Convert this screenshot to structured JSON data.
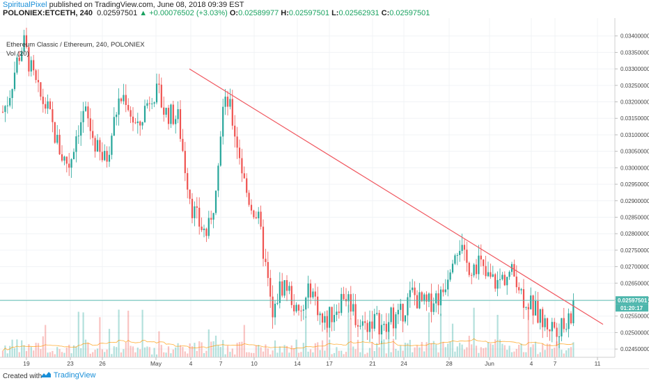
{
  "header": {
    "author": "SpiritualPixel",
    "published_text": " published on TradingView.com, June 08, 2018 09:39 EST",
    "symbol": "POLONIEX:ETCETH, 240",
    "last": "0.02597501",
    "change": "▲ +0.00076502 (+3.03%)",
    "o_label": "O:",
    "o_val": "0.02589977",
    "h_label": "H:",
    "h_val": "0.02597501",
    "l_label": "L:",
    "l_val": "0.02562931",
    "c_label": "C:",
    "c_val": "0.02597501"
  },
  "legend": {
    "title": "Ethereum Classic / Ethereum, 240, POLONIEX",
    "volume": "Vol (20)"
  },
  "footer": {
    "created_with": "Created with",
    "brand": "TradingView"
  },
  "colors": {
    "up": "#26a69a",
    "down": "#ef5350",
    "trendline": "#f0575f",
    "price_tag": "#4db6ac"
  },
  "chart_data": {
    "type": "candlestick",
    "title": "Ethereum Classic / Ethereum, 240, POLONIEX",
    "ylim": [
      0.02425,
      0.0345
    ],
    "y_ticks": [
      "0.02450000",
      "0.02500000",
      "0.02550000",
      "0.02600000",
      "0.02650000",
      "0.02700000",
      "0.02750000",
      "0.02800000",
      "0.02850000",
      "0.02900000",
      "0.02950000",
      "0.03000000",
      "0.03050000",
      "0.03100000",
      "0.03150000",
      "0.03200000",
      "0.03250000",
      "0.03300000",
      "0.03350000",
      "0.03400000"
    ],
    "x_ticks": [
      "19",
      "23",
      "26",
      "May",
      "4",
      "7",
      "10",
      "14",
      "17",
      "21",
      "24",
      "28",
      "Jun",
      "4",
      "7",
      "11"
    ],
    "price_line": 0.025975,
    "price_label": "0.02597501",
    "countdown_label": "01:20:17",
    "trendline": [
      {
        "date": "May 4",
        "price": 0.033
      },
      {
        "date": "Jun 9",
        "price": 0.02525
      }
    ],
    "path_points": [
      [
        0,
        0.0315
      ],
      [
        12,
        0.0321
      ],
      [
        24,
        0.0332
      ],
      [
        34,
        0.0338
      ],
      [
        44,
        0.033
      ],
      [
        56,
        0.0322
      ],
      [
        68,
        0.0318
      ],
      [
        80,
        0.0309
      ],
      [
        90,
        0.0303
      ],
      [
        100,
        0.0301
      ],
      [
        110,
        0.0311
      ],
      [
        122,
        0.0317
      ],
      [
        132,
        0.031
      ],
      [
        142,
        0.0304
      ],
      [
        152,
        0.0302
      ],
      [
        160,
        0.031
      ],
      [
        170,
        0.032
      ],
      [
        180,
        0.0322
      ],
      [
        190,
        0.0315
      ],
      [
        198,
        0.0311
      ],
      [
        208,
        0.0318
      ],
      [
        218,
        0.0323
      ],
      [
        228,
        0.0322
      ],
      [
        236,
        0.0317
      ],
      [
        246,
        0.0316
      ],
      [
        256,
        0.0315
      ],
      [
        266,
        0.03
      ],
      [
        276,
        0.0288
      ],
      [
        286,
        0.0283
      ],
      [
        296,
        0.028
      ],
      [
        304,
        0.0283
      ],
      [
        312,
        0.0301
      ],
      [
        320,
        0.0318
      ],
      [
        328,
        0.032
      ],
      [
        336,
        0.0312
      ],
      [
        344,
        0.0304
      ],
      [
        352,
        0.0294
      ],
      [
        360,
        0.0289
      ],
      [
        370,
        0.0285
      ],
      [
        378,
        0.0275
      ],
      [
        386,
        0.0263
      ],
      [
        392,
        0.0253
      ],
      [
        400,
        0.0263
      ],
      [
        410,
        0.0265
      ],
      [
        420,
        0.026
      ],
      [
        428,
        0.0254
      ],
      [
        436,
        0.0257
      ],
      [
        446,
        0.0264
      ],
      [
        456,
        0.0258
      ],
      [
        464,
        0.0252
      ],
      [
        474,
        0.0255
      ],
      [
        484,
        0.0258
      ],
      [
        494,
        0.0262
      ],
      [
        504,
        0.0259
      ],
      [
        514,
        0.0253
      ],
      [
        524,
        0.0252
      ],
      [
        534,
        0.0254
      ],
      [
        544,
        0.0253
      ],
      [
        554,
        0.025
      ],
      [
        562,
        0.0255
      ],
      [
        572,
        0.0254
      ],
      [
        582,
        0.0258
      ],
      [
        592,
        0.0262
      ],
      [
        604,
        0.0259
      ],
      [
        614,
        0.0258
      ],
      [
        624,
        0.0261
      ],
      [
        634,
        0.0261
      ],
      [
        644,
        0.0269
      ],
      [
        652,
        0.0276
      ],
      [
        660,
        0.0277
      ],
      [
        668,
        0.0271
      ],
      [
        678,
        0.027
      ],
      [
        688,
        0.0272
      ],
      [
        696,
        0.0267
      ],
      [
        704,
        0.0266
      ],
      [
        714,
        0.0265
      ],
      [
        724,
        0.0267
      ],
      [
        734,
        0.0268
      ],
      [
        742,
        0.0267
      ],
      [
        750,
        0.0261
      ],
      [
        760,
        0.0259
      ],
      [
        770,
        0.0256
      ],
      [
        780,
        0.0253
      ],
      [
        790,
        0.0252
      ],
      [
        800,
        0.0252
      ],
      [
        810,
        0.0251
      ],
      [
        820,
        0.0254
      ],
      [
        826,
        0.02598
      ]
    ],
    "volume_scale": [
      0,
      4000
    ]
  }
}
